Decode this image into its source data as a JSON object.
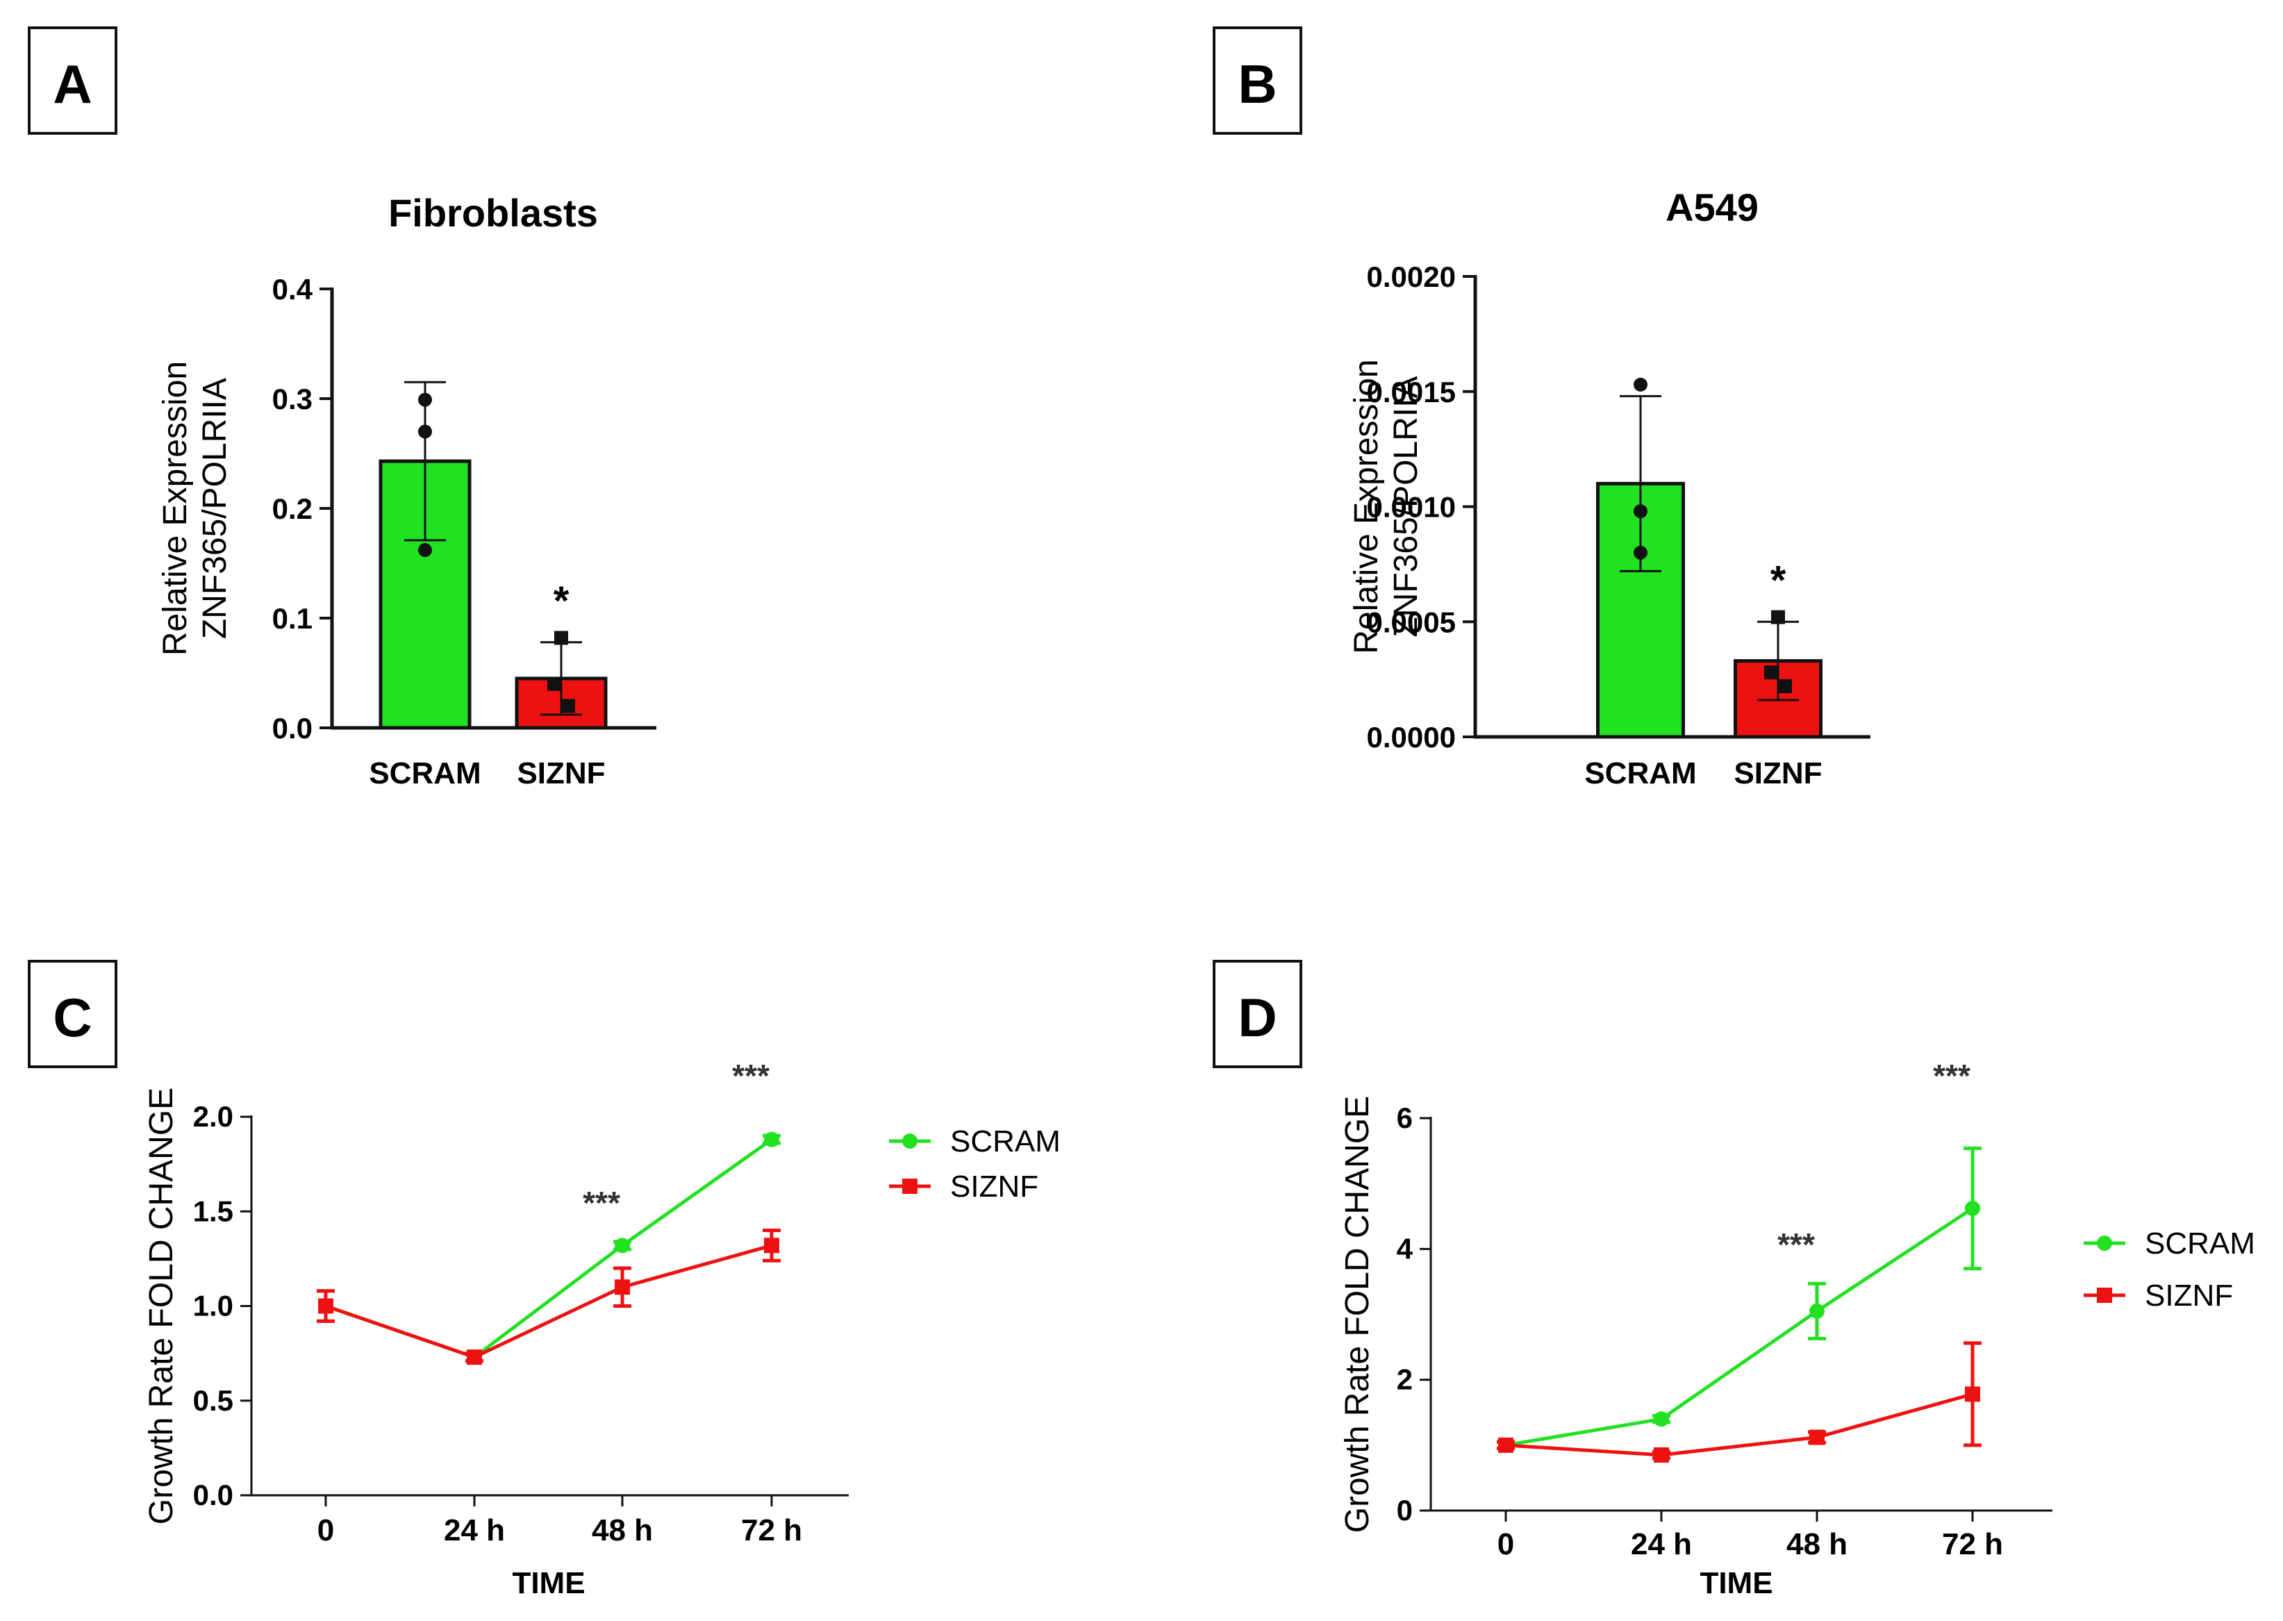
{
  "panels": [
    "A",
    "B",
    "C",
    "D"
  ],
  "colors": {
    "scram": "#22e022",
    "siznf": "#ee1111",
    "axis": "#111111"
  },
  "chart_data": [
    {
      "panel": "A",
      "type": "bar",
      "title": "Fibroblasts",
      "ylabel_line1": "Relative Expression",
      "ylabel_line2": "ZNF365/POLRIIA",
      "categories": [
        "SCRAM",
        "SIZNF"
      ],
      "values": [
        0.243,
        0.045
      ],
      "sd": [
        0.072,
        0.033
      ],
      "points": [
        [
          0.299,
          0.27,
          0.162
        ],
        [
          0.082,
          0.04,
          0.02
        ]
      ],
      "ylim": [
        0,
        0.4
      ],
      "yticks": [
        0,
        0.1,
        0.2,
        0.3,
        0.4
      ],
      "ytick_labels": [
        "0.0",
        "0.1",
        "0.2",
        "0.3",
        "0.4"
      ],
      "significance": [
        "",
        "*"
      ]
    },
    {
      "panel": "B",
      "type": "bar",
      "title": "A549",
      "ylabel_line1": "Relative Expression",
      "ylabel_line2": "ZNF365/POLRIIA",
      "categories": [
        "SCRAM",
        "SIZNF"
      ],
      "values": [
        0.0011,
        0.00033
      ],
      "sd": [
        0.00038,
        0.00017
      ],
      "points": [
        [
          0.00153,
          0.00098,
          0.0008
        ],
        [
          0.00052,
          0.00028,
          0.00022
        ]
      ],
      "ylim": [
        0,
        0.002
      ],
      "yticks": [
        0,
        0.0005,
        0.001,
        0.0015,
        0.002
      ],
      "ytick_labels": [
        "0.0000",
        "0.0005",
        "0.0010",
        "0.0015",
        "0.0020"
      ],
      "significance": [
        "",
        "*"
      ]
    },
    {
      "panel": "C",
      "type": "line",
      "ylabel": "Growth Rate FOLD CHANGE",
      "xlabel": "TIME",
      "x": [
        "0",
        "24 h",
        "48 h",
        "72 h"
      ],
      "ylim": [
        0,
        2.0
      ],
      "yticks": [
        0,
        0.5,
        1.0,
        1.5,
        2.0
      ],
      "ytick_labels": [
        "0.0",
        "0.5",
        "1.0",
        "1.5",
        "2.0"
      ],
      "series": [
        {
          "name": "SCRAM",
          "values": [
            1.0,
            0.73,
            1.32,
            1.88
          ],
          "err": [
            0.08,
            0.02,
            0.02,
            0.02
          ]
        },
        {
          "name": "SIZNF",
          "values": [
            1.0,
            0.73,
            1.1,
            1.32
          ],
          "err": [
            0.08,
            0.02,
            0.1,
            0.08
          ]
        }
      ],
      "significance": [
        "",
        "",
        "***",
        "***"
      ]
    },
    {
      "panel": "D",
      "type": "line",
      "ylabel": "Growth Rate FOLD CHANGE",
      "xlabel": "TIME",
      "x": [
        "0",
        "24 h",
        "48 h",
        "72 h"
      ],
      "ylim": [
        0,
        6
      ],
      "yticks": [
        0,
        2,
        4,
        6
      ],
      "ytick_labels": [
        "0",
        "2",
        "4",
        "6"
      ],
      "series": [
        {
          "name": "SCRAM",
          "values": [
            1.0,
            1.4,
            3.05,
            4.62
          ],
          "err": [
            0.05,
            0.05,
            0.42,
            0.92
          ]
        },
        {
          "name": "SIZNF",
          "values": [
            1.0,
            0.85,
            1.12,
            1.78
          ],
          "err": [
            0.05,
            0.05,
            0.08,
            0.78
          ]
        }
      ],
      "significance": [
        "",
        "",
        "***",
        "***"
      ]
    }
  ]
}
